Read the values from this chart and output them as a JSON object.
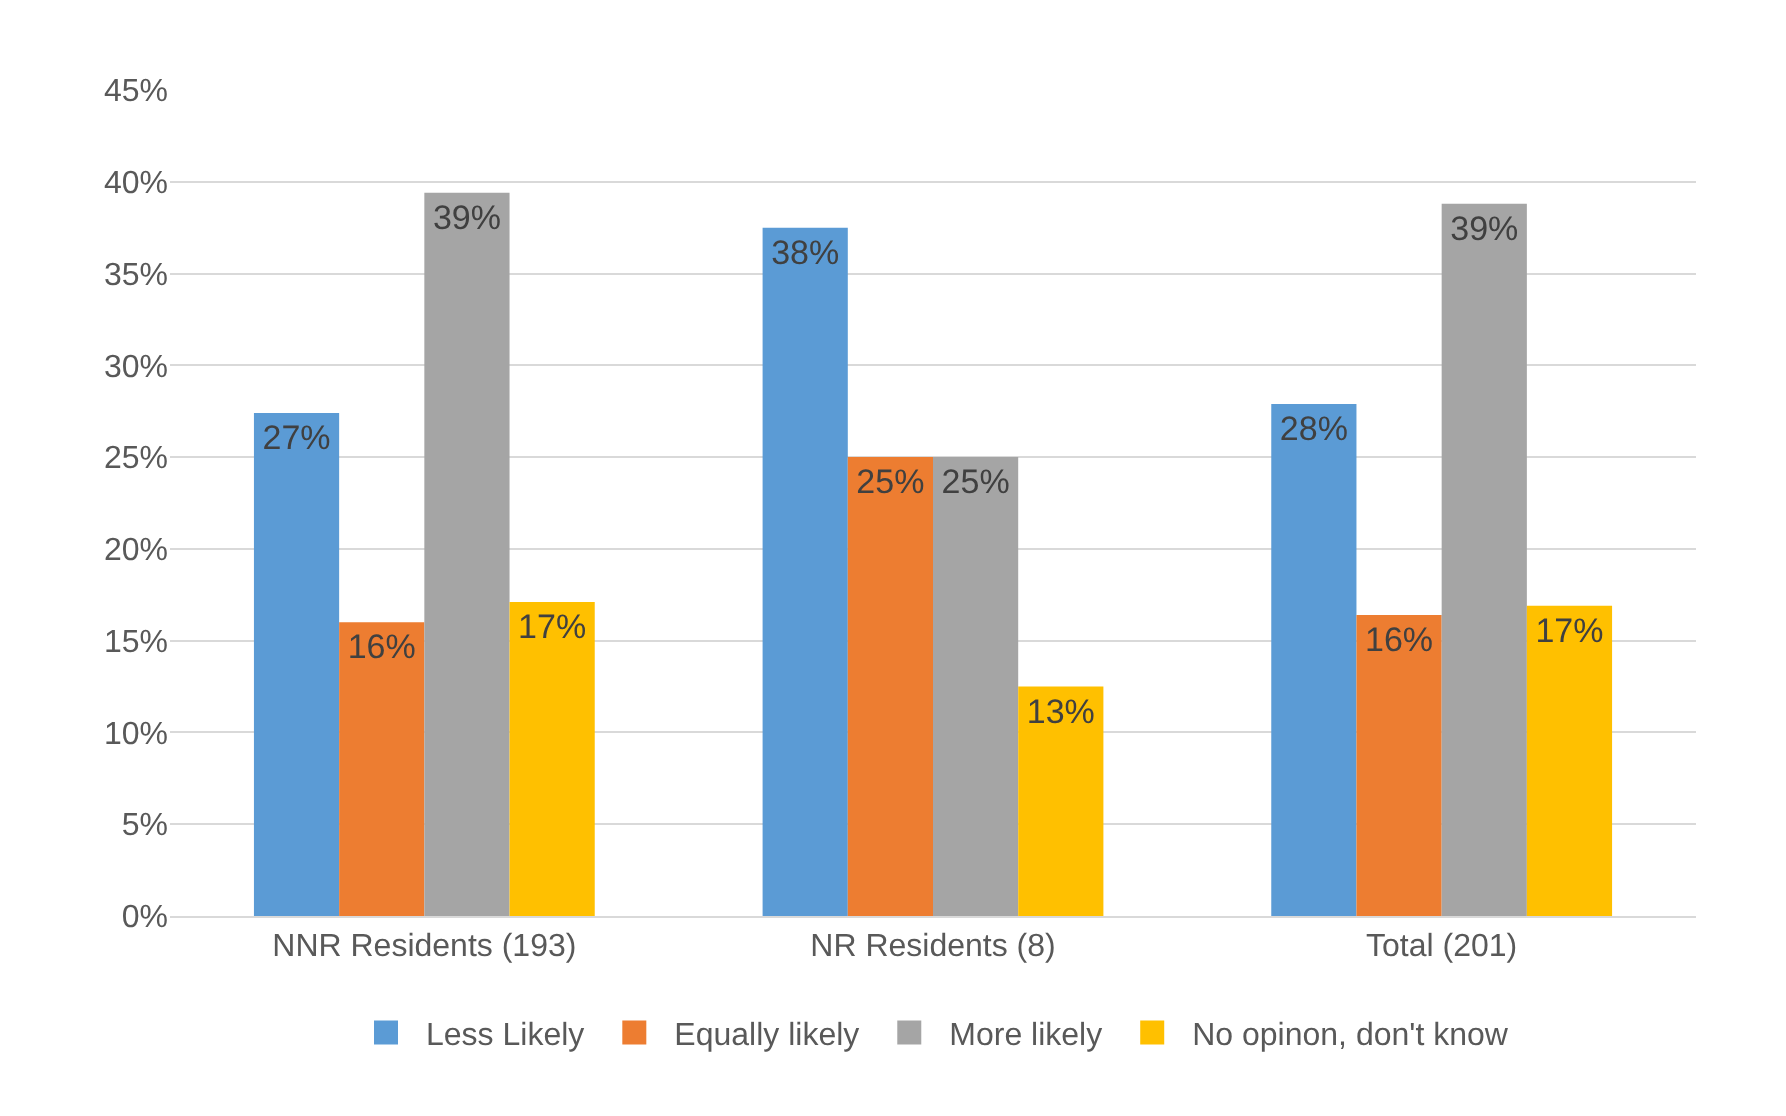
{
  "chart_data": {
    "type": "bar",
    "categories": [
      "NNR Residents (193)",
      "NR Residents (8)",
      "Total (201)"
    ],
    "series": [
      {
        "name": "Less Likely",
        "color": "#5b9bd5",
        "values": [
          27.4,
          37.5,
          27.9
        ],
        "value_labels": [
          "27%",
          "38%",
          "28%"
        ]
      },
      {
        "name": "Equally likely",
        "color": "#ed7d31",
        "values": [
          16,
          25,
          16.4
        ],
        "value_labels": [
          "16%",
          "25%",
          "16%"
        ]
      },
      {
        "name": "More likely",
        "color": "#a5a5a5",
        "values": [
          39.4,
          25,
          38.8
        ],
        "value_labels": [
          "39%",
          "25%",
          "39%"
        ]
      },
      {
        "name": "No opinon, don't know",
        "color": "#ffc000",
        "values": [
          17.1,
          12.5,
          16.9
        ],
        "value_labels": [
          "17%",
          "13%",
          "17%"
        ]
      }
    ],
    "ylim": [
      0,
      45
    ],
    "yticks": [
      {
        "value": 0,
        "label": "0%"
      },
      {
        "value": 5,
        "label": "5%"
      },
      {
        "value": 10,
        "label": "10%"
      },
      {
        "value": 15,
        "label": "15%"
      },
      {
        "value": 20,
        "label": "20%"
      },
      {
        "value": 25,
        "label": "25%"
      },
      {
        "value": 30,
        "label": "30%"
      },
      {
        "value": 35,
        "label": "35%"
      },
      {
        "value": 40,
        "label": "40%"
      },
      {
        "value": 45,
        "label": "45%"
      }
    ],
    "grid": "y",
    "legend": "bottom"
  }
}
